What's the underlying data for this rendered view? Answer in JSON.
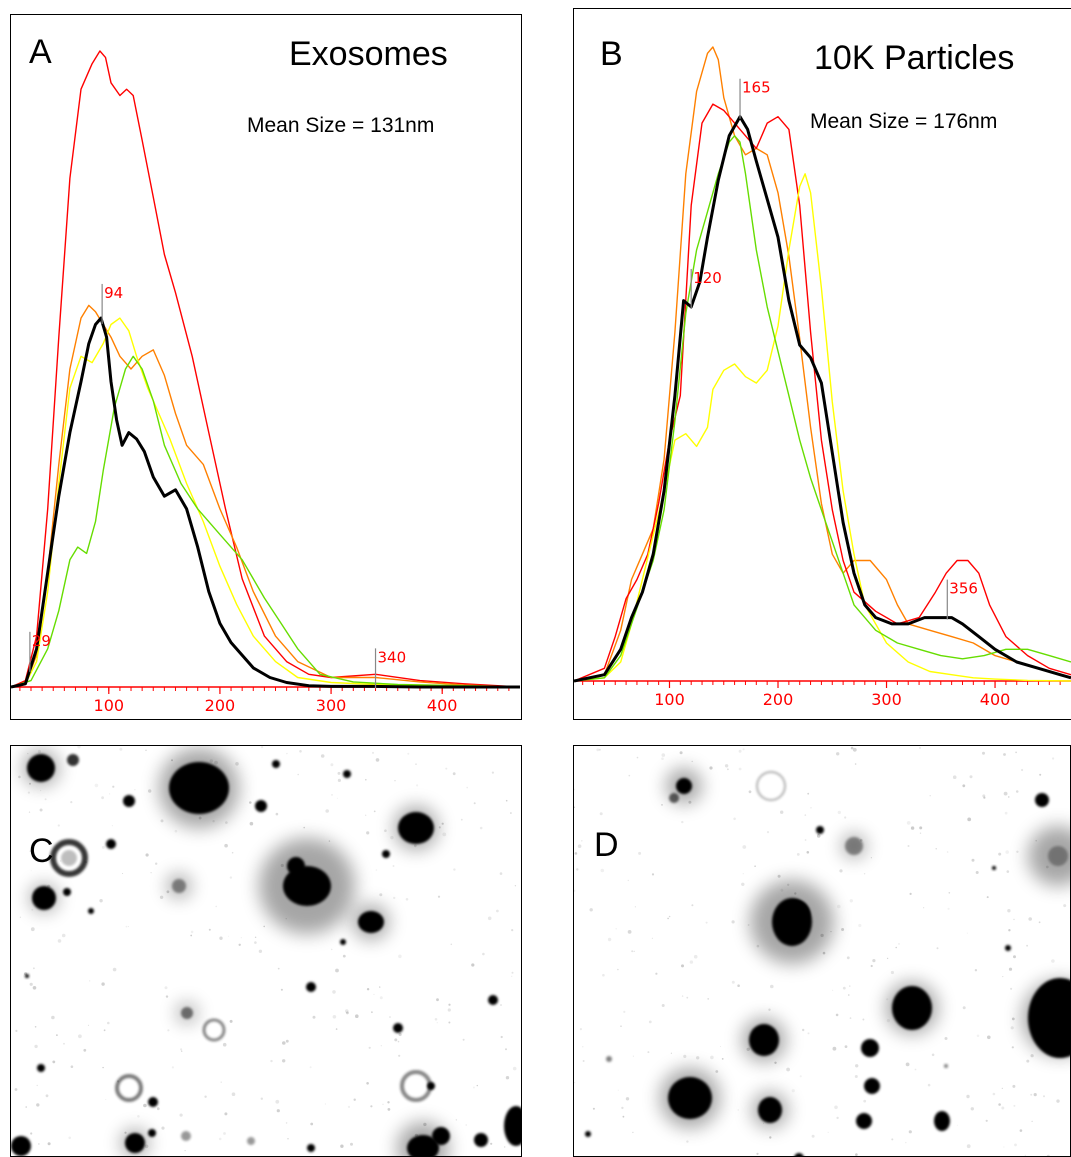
{
  "panels": {
    "A": {
      "letter": "A",
      "title": "Exosomes",
      "mean_size": "Mean Size = 131nm"
    },
    "B": {
      "letter": "B",
      "title": "10K Particles",
      "mean_size": "Mean Size = 176nm"
    },
    "C": {
      "letter": "C"
    },
    "D": {
      "letter": "D"
    }
  },
  "colors": {
    "red": "#ff0000",
    "orange": "#ff8000",
    "yellow": "#ffff00",
    "green": "#66dd00",
    "black": "#000000",
    "axis": "#ff0000",
    "marker": "#888888"
  },
  "chart_data": [
    {
      "type": "line",
      "title": "Exosomes",
      "xlabel": "",
      "ylabel": "",
      "xlim": [
        12,
        470
      ],
      "ylim": [
        0,
        1
      ],
      "xticks": [
        100,
        200,
        300,
        400
      ],
      "grid": false,
      "markers": [
        {
          "x": 29,
          "label": "29"
        },
        {
          "x": 94,
          "label": "94"
        },
        {
          "x": 340,
          "label": "340"
        }
      ],
      "series": [
        {
          "color": "red",
          "x": [
            12,
            25,
            35,
            45,
            55,
            65,
            75,
            85,
            92,
            97,
            102,
            110,
            116,
            122,
            130,
            140,
            150,
            160,
            175,
            190,
            205,
            220,
            240,
            260,
            280,
            300,
            340,
            380,
            420,
            470
          ],
          "y": [
            0,
            0.01,
            0.08,
            0.28,
            0.55,
            0.8,
            0.94,
            0.98,
            1.0,
            0.99,
            0.95,
            0.93,
            0.94,
            0.93,
            0.86,
            0.77,
            0.68,
            0.62,
            0.52,
            0.4,
            0.28,
            0.17,
            0.08,
            0.04,
            0.02,
            0.015,
            0.02,
            0.01,
            0.005,
            0
          ]
        },
        {
          "color": "orange",
          "x": [
            12,
            25,
            35,
            45,
            55,
            65,
            75,
            82,
            88,
            95,
            102,
            110,
            120,
            130,
            140,
            150,
            160,
            170,
            185,
            200,
            215,
            230,
            250,
            270,
            300,
            340,
            380,
            420,
            470
          ],
          "y": [
            0,
            0.005,
            0.05,
            0.18,
            0.35,
            0.5,
            0.58,
            0.6,
            0.59,
            0.57,
            0.55,
            0.52,
            0.5,
            0.52,
            0.53,
            0.49,
            0.43,
            0.38,
            0.35,
            0.28,
            0.22,
            0.15,
            0.08,
            0.04,
            0.015,
            0.015,
            0.008,
            0.003,
            0
          ]
        },
        {
          "color": "yellow",
          "x": [
            12,
            25,
            35,
            45,
            55,
            65,
            75,
            85,
            95,
            102,
            110,
            118,
            125,
            135,
            145,
            155,
            170,
            185,
            200,
            215,
            230,
            250,
            270,
            300,
            340,
            380,
            420,
            470
          ],
          "y": [
            0,
            0.005,
            0.04,
            0.15,
            0.32,
            0.47,
            0.52,
            0.51,
            0.54,
            0.57,
            0.58,
            0.56,
            0.52,
            0.47,
            0.43,
            0.39,
            0.32,
            0.26,
            0.19,
            0.13,
            0.08,
            0.04,
            0.015,
            0.007,
            0.004,
            0.002,
            0.001,
            0
          ]
        },
        {
          "color": "green",
          "x": [
            12,
            30,
            45,
            55,
            65,
            72,
            80,
            88,
            95,
            105,
            115,
            122,
            130,
            140,
            150,
            165,
            180,
            200,
            220,
            240,
            255,
            270,
            290,
            320,
            360,
            420,
            470
          ],
          "y": [
            0,
            0.01,
            0.06,
            0.12,
            0.2,
            0.22,
            0.21,
            0.26,
            0.34,
            0.44,
            0.5,
            0.52,
            0.5,
            0.45,
            0.38,
            0.32,
            0.28,
            0.24,
            0.2,
            0.14,
            0.1,
            0.06,
            0.02,
            0.008,
            0.004,
            0.002,
            0
          ]
        },
        {
          "color": "black",
          "x": [
            12,
            25,
            35,
            45,
            55,
            65,
            75,
            82,
            88,
            93,
            98,
            102,
            107,
            112,
            118,
            125,
            132,
            140,
            150,
            160,
            170,
            180,
            190,
            200,
            210,
            220,
            230,
            245,
            260,
            280,
            300,
            340,
            380,
            420,
            470
          ],
          "y": [
            0,
            0.005,
            0.06,
            0.18,
            0.3,
            0.4,
            0.48,
            0.54,
            0.57,
            0.58,
            0.55,
            0.48,
            0.42,
            0.38,
            0.4,
            0.39,
            0.37,
            0.33,
            0.3,
            0.31,
            0.28,
            0.22,
            0.15,
            0.1,
            0.07,
            0.05,
            0.03,
            0.015,
            0.007,
            0.002,
            0.001,
            0.001,
            0,
            0,
            0
          ]
        }
      ]
    },
    {
      "type": "line",
      "title": "10K Particles",
      "xlabel": "",
      "ylabel": "",
      "xlim": [
        12,
        470
      ],
      "ylim": [
        0,
        1
      ],
      "xticks": [
        100,
        200,
        300,
        400
      ],
      "grid": false,
      "markers": [
        {
          "x": 120,
          "label": "120"
        },
        {
          "x": 165,
          "label": "165"
        },
        {
          "x": 356,
          "label": "356"
        }
      ],
      "series": [
        {
          "color": "orange",
          "x": [
            12,
            40,
            55,
            65,
            75,
            85,
            95,
            105,
            115,
            125,
            135,
            140,
            145,
            150,
            160,
            170,
            180,
            190,
            200,
            210,
            220,
            230,
            240,
            250,
            260,
            270,
            285,
            300,
            310,
            320,
            340,
            360,
            380,
            400,
            420,
            440,
            460,
            470
          ],
          "y": [
            0,
            0.01,
            0.08,
            0.16,
            0.2,
            0.24,
            0.35,
            0.55,
            0.8,
            0.93,
            0.99,
            1.0,
            0.98,
            0.92,
            0.86,
            0.83,
            0.84,
            0.83,
            0.77,
            0.67,
            0.54,
            0.4,
            0.28,
            0.2,
            0.17,
            0.19,
            0.19,
            0.16,
            0.12,
            0.09,
            0.08,
            0.07,
            0.06,
            0.04,
            0.03,
            0.02,
            0.01,
            0.005
          ]
        },
        {
          "color": "red",
          "x": [
            12,
            40,
            50,
            60,
            70,
            80,
            90,
            100,
            110,
            120,
            130,
            140,
            150,
            160,
            170,
            180,
            190,
            200,
            210,
            220,
            230,
            240,
            250,
            260,
            270,
            290,
            310,
            330,
            345,
            355,
            365,
            375,
            385,
            395,
            410,
            430,
            450,
            470
          ],
          "y": [
            0,
            0.02,
            0.07,
            0.13,
            0.16,
            0.2,
            0.28,
            0.38,
            0.45,
            0.75,
            0.88,
            0.91,
            0.9,
            0.88,
            0.86,
            0.84,
            0.88,
            0.89,
            0.87,
            0.75,
            0.55,
            0.38,
            0.27,
            0.19,
            0.14,
            0.11,
            0.09,
            0.1,
            0.14,
            0.17,
            0.19,
            0.19,
            0.17,
            0.12,
            0.07,
            0.04,
            0.02,
            0.01
          ]
        },
        {
          "color": "yellow",
          "x": [
            12,
            40,
            55,
            65,
            75,
            85,
            95,
            105,
            115,
            125,
            135,
            140,
            150,
            160,
            170,
            180,
            190,
            200,
            210,
            220,
            225,
            230,
            240,
            250,
            260,
            270,
            280,
            300,
            320,
            340,
            360,
            380,
            400,
            430,
            470
          ],
          "y": [
            0,
            0.005,
            0.03,
            0.09,
            0.16,
            0.23,
            0.3,
            0.38,
            0.39,
            0.37,
            0.4,
            0.46,
            0.49,
            0.5,
            0.48,
            0.47,
            0.49,
            0.56,
            0.68,
            0.78,
            0.8,
            0.77,
            0.62,
            0.44,
            0.3,
            0.2,
            0.12,
            0.06,
            0.03,
            0.015,
            0.01,
            0.005,
            0.003,
            0.001,
            0
          ]
        },
        {
          "color": "green",
          "x": [
            12,
            40,
            55,
            65,
            75,
            85,
            95,
            105,
            115,
            125,
            135,
            145,
            155,
            160,
            165,
            170,
            180,
            190,
            200,
            210,
            220,
            230,
            240,
            250,
            260,
            270,
            290,
            310,
            330,
            350,
            370,
            390,
            410,
            430,
            450,
            470
          ],
          "y": [
            0,
            0.005,
            0.04,
            0.09,
            0.14,
            0.19,
            0.27,
            0.41,
            0.58,
            0.68,
            0.74,
            0.8,
            0.85,
            0.86,
            0.85,
            0.8,
            0.68,
            0.59,
            0.52,
            0.45,
            0.38,
            0.32,
            0.27,
            0.22,
            0.17,
            0.12,
            0.08,
            0.06,
            0.05,
            0.04,
            0.035,
            0.04,
            0.05,
            0.05,
            0.04,
            0.03
          ]
        },
        {
          "color": "black",
          "x": [
            12,
            40,
            55,
            65,
            75,
            85,
            95,
            105,
            113,
            120,
            128,
            135,
            145,
            155,
            165,
            172,
            180,
            190,
            200,
            210,
            220,
            230,
            240,
            250,
            260,
            270,
            280,
            290,
            305,
            320,
            335,
            350,
            360,
            370,
            385,
            400,
            420,
            440,
            460,
            470
          ],
          "y": [
            0,
            0.01,
            0.05,
            0.1,
            0.14,
            0.2,
            0.3,
            0.45,
            0.6,
            0.59,
            0.63,
            0.7,
            0.79,
            0.86,
            0.89,
            0.87,
            0.82,
            0.76,
            0.7,
            0.6,
            0.53,
            0.51,
            0.47,
            0.36,
            0.25,
            0.17,
            0.12,
            0.1,
            0.09,
            0.09,
            0.1,
            0.1,
            0.1,
            0.09,
            0.07,
            0.05,
            0.03,
            0.02,
            0.01,
            0.005
          ]
        }
      ]
    }
  ]
}
